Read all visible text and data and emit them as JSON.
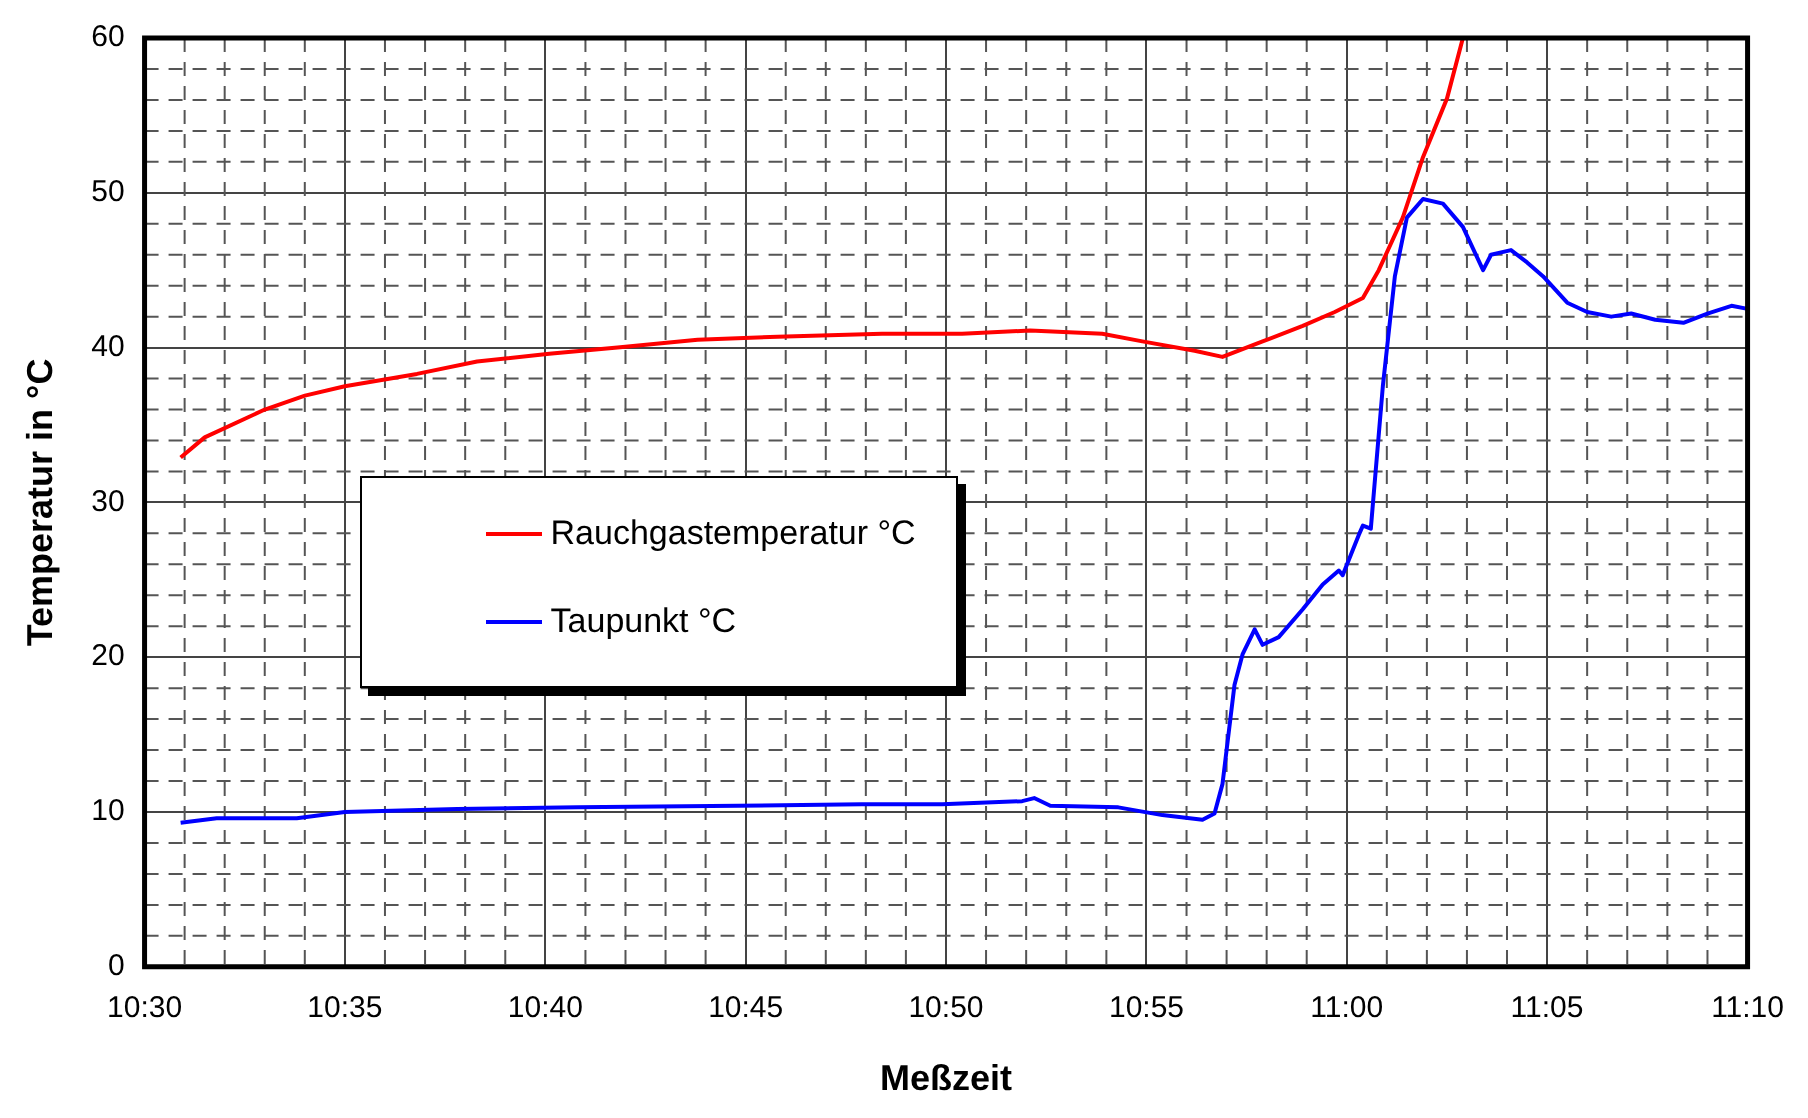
{
  "chart_data": {
    "type": "line",
    "xlabel": "Meßzeit",
    "ylabel": "Temperatur in °C",
    "xlim": [
      10.5,
      11.1667
    ],
    "xticks": [
      {
        "value": 10.5,
        "label": "10:30"
      },
      {
        "value": 10.5833,
        "label": "10:35"
      },
      {
        "value": 10.6667,
        "label": "10:40"
      },
      {
        "value": 10.75,
        "label": "10:45"
      },
      {
        "value": 10.8333,
        "label": "10:50"
      },
      {
        "value": 10.9167,
        "label": "10:55"
      },
      {
        "value": 11.0,
        "label": "11:00"
      },
      {
        "value": 11.0833,
        "label": "11:05"
      },
      {
        "value": 11.1667,
        "label": "11:10"
      }
    ],
    "ylim": [
      0,
      60
    ],
    "yticks": [
      0,
      10,
      20,
      30,
      40,
      50,
      60
    ],
    "grid": true,
    "legend": "center left",
    "marker": "none",
    "line_style": "solid",
    "series": [
      {
        "name": "Rauchgastemperatur °C",
        "color": "#ff0000",
        "x": [
          10.515,
          10.525,
          10.55,
          10.5667,
          10.5833,
          10.6133,
          10.6383,
          10.6683,
          10.6967,
          10.73,
          10.7633,
          10.8067,
          10.84,
          10.8683,
          10.8983,
          10.915,
          10.9367,
          10.9483,
          10.965,
          10.9817,
          10.995,
          11.0067,
          11.0133,
          11.0233,
          11.0317,
          11.0417,
          11.0483
        ],
        "values": [
          32.9,
          34.2,
          36.0,
          36.9,
          37.5,
          38.3,
          39.1,
          39.6,
          40.0,
          40.5,
          40.7,
          40.9,
          40.9,
          41.1,
          40.9,
          40.4,
          39.8,
          39.4,
          40.4,
          41.4,
          42.3,
          43.2,
          45.0,
          48.4,
          52.3,
          56.1,
          60.0
        ]
      },
      {
        "name": "Taupunkt °C",
        "color": "#0000ff",
        "x": [
          10.515,
          10.53,
          10.5633,
          10.5833,
          10.63,
          10.68,
          10.7467,
          10.7983,
          10.8317,
          10.865,
          10.87,
          10.8767,
          10.905,
          10.9233,
          10.94,
          10.945,
          10.9483,
          10.9533,
          10.9567,
          10.9617,
          10.965,
          10.9717,
          10.9817,
          10.99,
          10.9967,
          10.9983,
          11.005,
          11.0067,
          11.01,
          11.015,
          11.02,
          11.025,
          11.0317,
          11.04,
          11.0483,
          11.0567,
          11.06,
          11.0683,
          11.075,
          11.0817,
          11.0917,
          11.1,
          11.11,
          11.1183,
          11.1283,
          11.14,
          11.15,
          11.16,
          11.1667
        ],
        "values": [
          9.3,
          9.6,
          9.6,
          10.0,
          10.2,
          10.3,
          10.4,
          10.5,
          10.5,
          10.7,
          10.9,
          10.4,
          10.3,
          9.8,
          9.5,
          9.9,
          11.8,
          18.2,
          20.2,
          21.8,
          20.8,
          21.3,
          23.1,
          24.7,
          25.6,
          25.3,
          27.9,
          28.5,
          28.3,
          37.5,
          44.6,
          48.4,
          49.6,
          49.3,
          47.8,
          45.0,
          46.0,
          46.3,
          45.5,
          44.6,
          42.9,
          42.3,
          42.0,
          42.2,
          41.8,
          41.6,
          42.2,
          42.7,
          42.5
        ]
      }
    ]
  }
}
